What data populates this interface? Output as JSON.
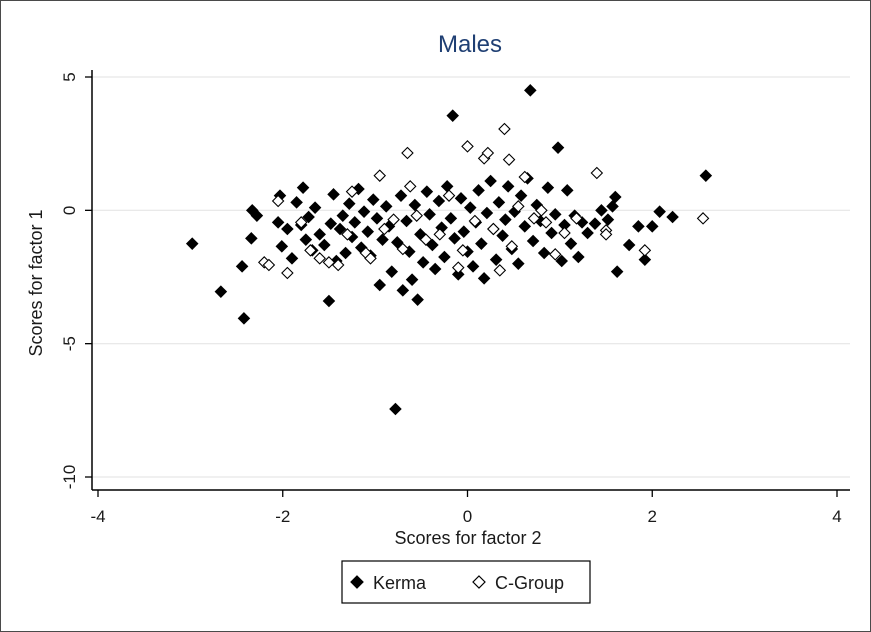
{
  "chart_data": {
    "type": "scatter",
    "title": "Males",
    "xlabel": "Scores for factor 2",
    "ylabel": "Scores for factor 1",
    "xlim": [
      -4,
      4
    ],
    "ylim": [
      -10,
      5
    ],
    "xticks": [
      -4,
      -2,
      0,
      2,
      4
    ],
    "yticks": [
      5,
      0,
      -5,
      -10
    ],
    "xtick_labels": [
      "-4",
      "-2",
      "0",
      "2",
      "4"
    ],
    "ytick_labels": [
      "5",
      "0",
      "-5",
      "-10"
    ],
    "grid": true,
    "legend_position": "bottom",
    "series": [
      {
        "name": "Kerma",
        "marker": "filled-diamond",
        "color": "#000000",
        "points": [
          [
            -2.98,
            -1.25
          ],
          [
            -2.67,
            -3.05
          ],
          [
            -2.44,
            -2.1
          ],
          [
            -2.42,
            -4.05
          ],
          [
            -2.34,
            -1.05
          ],
          [
            -2.33,
            0.0
          ],
          [
            -2.28,
            -0.2
          ],
          [
            -2.05,
            -0.45
          ],
          [
            -2.03,
            0.55
          ],
          [
            -2.01,
            -1.35
          ],
          [
            -1.95,
            -0.7
          ],
          [
            -1.9,
            -1.8
          ],
          [
            -1.85,
            0.3
          ],
          [
            -1.8,
            -0.55
          ],
          [
            -1.78,
            0.85
          ],
          [
            -1.75,
            -1.1
          ],
          [
            -1.72,
            -0.25
          ],
          [
            -1.68,
            -1.5
          ],
          [
            -1.65,
            0.1
          ],
          [
            -1.6,
            -0.9
          ],
          [
            -1.55,
            -1.3
          ],
          [
            -1.5,
            -3.4
          ],
          [
            -1.48,
            -0.5
          ],
          [
            -1.45,
            0.6
          ],
          [
            -1.42,
            -1.9
          ],
          [
            -1.38,
            -0.7
          ],
          [
            -1.35,
            -0.2
          ],
          [
            -1.32,
            -1.6
          ],
          [
            -1.28,
            0.25
          ],
          [
            -1.25,
            -1.0
          ],
          [
            -1.22,
            -0.45
          ],
          [
            -1.18,
            0.8
          ],
          [
            -1.15,
            -1.4
          ],
          [
            -1.12,
            -0.05
          ],
          [
            -1.08,
            -0.8
          ],
          [
            -1.05,
            -1.7
          ],
          [
            -1.02,
            0.4
          ],
          [
            -0.98,
            -0.3
          ],
          [
            -0.95,
            -2.8
          ],
          [
            -0.92,
            -1.1
          ],
          [
            -0.88,
            0.15
          ],
          [
            -0.85,
            -0.6
          ],
          [
            -0.82,
            -2.3
          ],
          [
            -0.78,
            -7.45
          ],
          [
            -0.76,
            -1.2
          ],
          [
            -0.72,
            0.55
          ],
          [
            -0.7,
            -3.0
          ],
          [
            -0.66,
            -0.4
          ],
          [
            -0.63,
            -1.55
          ],
          [
            -0.6,
            -2.6
          ],
          [
            -0.57,
            0.2
          ],
          [
            -0.54,
            -3.35
          ],
          [
            -0.51,
            -0.9
          ],
          [
            -0.48,
            -1.95
          ],
          [
            -0.44,
            0.7
          ],
          [
            -0.41,
            -0.15
          ],
          [
            -0.38,
            -1.3
          ],
          [
            -0.35,
            -2.2
          ],
          [
            -0.31,
            0.35
          ],
          [
            -0.28,
            -0.65
          ],
          [
            -0.25,
            -1.75
          ],
          [
            -0.22,
            0.9
          ],
          [
            -0.18,
            -0.3
          ],
          [
            -0.16,
            3.55
          ],
          [
            -0.14,
            -1.05
          ],
          [
            -0.1,
            -2.4
          ],
          [
            -0.07,
            0.45
          ],
          [
            -0.04,
            -0.8
          ],
          [
            0.0,
            -1.55
          ],
          [
            0.03,
            0.1
          ],
          [
            0.06,
            -2.1
          ],
          [
            0.09,
            -0.45
          ],
          [
            0.12,
            0.75
          ],
          [
            0.15,
            -1.25
          ],
          [
            0.18,
            -2.55
          ],
          [
            0.21,
            -0.1
          ],
          [
            0.25,
            1.1
          ],
          [
            0.28,
            -0.7
          ],
          [
            0.31,
            -1.85
          ],
          [
            0.34,
            0.3
          ],
          [
            0.38,
            -0.95
          ],
          [
            0.41,
            -0.35
          ],
          [
            0.44,
            0.9
          ],
          [
            0.48,
            -1.45
          ],
          [
            0.51,
            -0.05
          ],
          [
            0.55,
            -2.0
          ],
          [
            0.58,
            0.55
          ],
          [
            0.62,
            -0.6
          ],
          [
            0.65,
            1.2
          ],
          [
            0.68,
            4.5
          ],
          [
            0.71,
            -1.15
          ],
          [
            0.75,
            0.2
          ],
          [
            0.79,
            -0.4
          ],
          [
            0.83,
            -1.6
          ],
          [
            0.87,
            0.85
          ],
          [
            0.91,
            -0.85
          ],
          [
            0.95,
            -0.15
          ],
          [
            0.98,
            2.35
          ],
          [
            1.02,
            -1.9
          ],
          [
            1.05,
            -0.55
          ],
          [
            1.08,
            0.75
          ],
          [
            1.12,
            -1.25
          ],
          [
            1.16,
            -0.2
          ],
          [
            1.2,
            -1.75
          ],
          [
            1.24,
            -0.45
          ],
          [
            1.3,
            -0.85
          ],
          [
            1.38,
            -0.5
          ],
          [
            1.45,
            0.0
          ],
          [
            1.52,
            -0.35
          ],
          [
            1.57,
            0.15
          ],
          [
            1.6,
            0.5
          ],
          [
            1.62,
            -2.3
          ],
          [
            1.75,
            -1.3
          ],
          [
            1.85,
            -0.6
          ],
          [
            1.92,
            -1.85
          ],
          [
            2.0,
            -0.6
          ],
          [
            2.08,
            -0.05
          ],
          [
            2.22,
            -0.25
          ],
          [
            2.58,
            1.3
          ]
        ]
      },
      {
        "name": "C-Group",
        "marker": "hollow-diamond",
        "color": "#000000",
        "points": [
          [
            -2.2,
            -1.95
          ],
          [
            -2.15,
            -2.05
          ],
          [
            -2.05,
            0.35
          ],
          [
            -1.95,
            -2.35
          ],
          [
            -1.8,
            -0.45
          ],
          [
            -1.7,
            -1.5
          ],
          [
            -1.6,
            -1.8
          ],
          [
            -1.5,
            -1.95
          ],
          [
            -1.4,
            -2.05
          ],
          [
            -1.3,
            -0.9
          ],
          [
            -1.25,
            0.7
          ],
          [
            -1.1,
            -1.6
          ],
          [
            -1.05,
            -1.8
          ],
          [
            -0.95,
            1.3
          ],
          [
            -0.9,
            -0.7
          ],
          [
            -0.8,
            -0.35
          ],
          [
            -0.7,
            -1.45
          ],
          [
            -0.65,
            2.15
          ],
          [
            -0.62,
            0.9
          ],
          [
            -0.55,
            -0.2
          ],
          [
            -0.45,
            -1.1
          ],
          [
            -0.3,
            -0.9
          ],
          [
            -0.2,
            0.55
          ],
          [
            -0.1,
            -2.15
          ],
          [
            -0.05,
            -1.5
          ],
          [
            0.0,
            2.4
          ],
          [
            0.08,
            -0.4
          ],
          [
            0.18,
            1.95
          ],
          [
            0.22,
            2.15
          ],
          [
            0.28,
            -0.7
          ],
          [
            0.35,
            -2.25
          ],
          [
            0.4,
            3.05
          ],
          [
            0.45,
            1.9
          ],
          [
            0.48,
            -1.35
          ],
          [
            0.55,
            0.15
          ],
          [
            0.62,
            1.25
          ],
          [
            0.72,
            -0.3
          ],
          [
            0.8,
            0.0
          ],
          [
            0.85,
            -0.45
          ],
          [
            0.95,
            -1.65
          ],
          [
            1.05,
            -0.85
          ],
          [
            1.18,
            -0.3
          ],
          [
            1.4,
            1.4
          ],
          [
            1.5,
            -0.75
          ],
          [
            1.5,
            -0.9
          ],
          [
            1.92,
            -1.5
          ],
          [
            2.55,
            -0.3
          ]
        ]
      }
    ]
  },
  "colors": {
    "title": "#1f3f73",
    "marker": "#000000",
    "gridline": "#e6e6e6",
    "frame": "#4a4a4a"
  }
}
